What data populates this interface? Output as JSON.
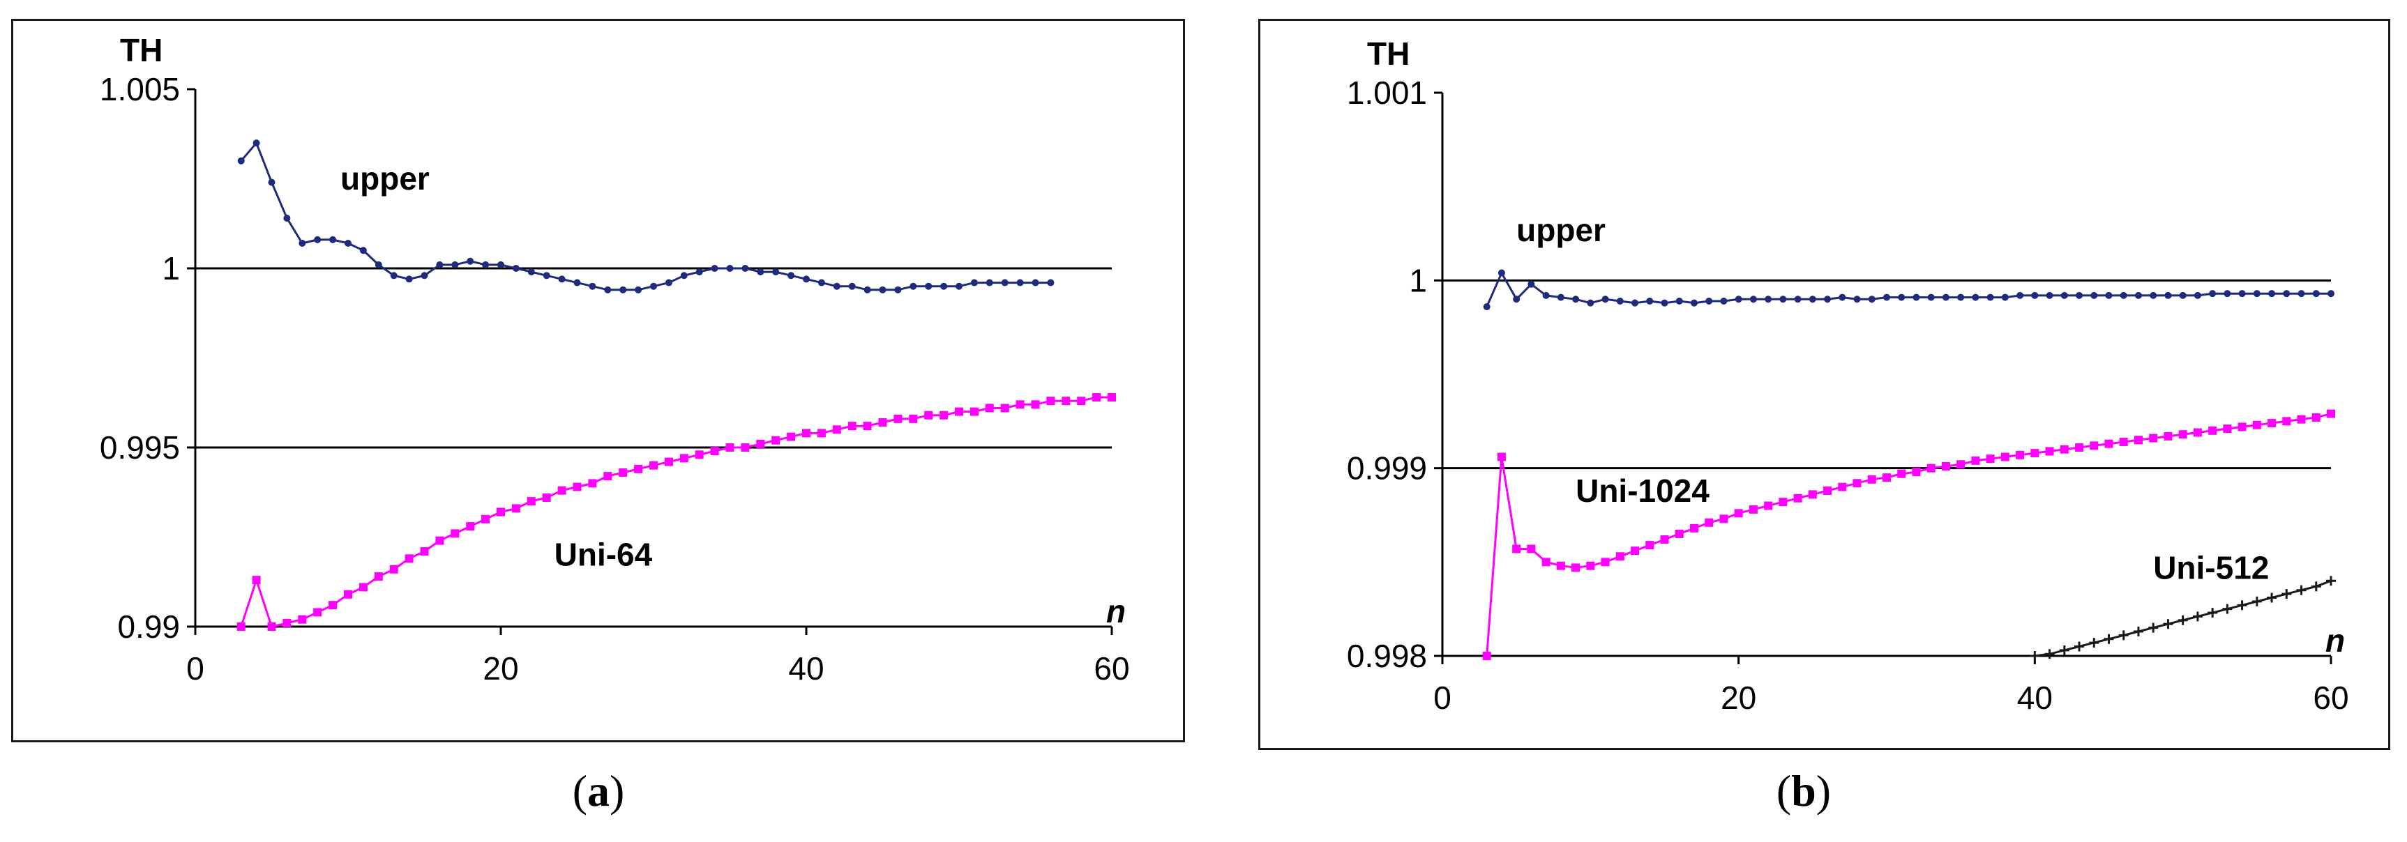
{
  "captions": {
    "a": "a",
    "b": "b"
  },
  "chart_data": [
    {
      "type": "line",
      "panel": "a",
      "ylabel": "TH",
      "xlabel": "n",
      "xlim": [
        0,
        60
      ],
      "ylim": [
        0.99,
        1.005
      ],
      "xticks": [
        "0",
        "20",
        "40",
        "60"
      ],
      "yticks": [
        "0.99",
        "0.995",
        "1",
        "1.005"
      ],
      "gridlines_y": [
        0.995,
        1.0
      ],
      "series": [
        {
          "name": "upper",
          "color": "#1f2a7a",
          "marker": "dot",
          "points": [
            [
              3,
              1.003
            ],
            [
              4,
              1.0035
            ],
            [
              5,
              1.0024
            ],
            [
              6,
              1.0014
            ],
            [
              7,
              1.0007
            ],
            [
              8,
              1.0008
            ],
            [
              9,
              1.0008
            ],
            [
              10,
              1.0007
            ],
            [
              11,
              1.0005
            ],
            [
              12,
              1.0001
            ],
            [
              13,
              0.9998
            ],
            [
              14,
              0.9997
            ],
            [
              15,
              0.9998
            ],
            [
              16,
              1.0001
            ],
            [
              17,
              1.0001
            ],
            [
              18,
              1.0002
            ],
            [
              19,
              1.0001
            ],
            [
              20,
              1.0001
            ],
            [
              21,
              1.0
            ],
            [
              22,
              0.9999
            ],
            [
              23,
              0.9998
            ],
            [
              24,
              0.9997
            ],
            [
              25,
              0.9996
            ],
            [
              26,
              0.9995
            ],
            [
              27,
              0.9994
            ],
            [
              28,
              0.9994
            ],
            [
              29,
              0.9994
            ],
            [
              30,
              0.9995
            ],
            [
              31,
              0.9996
            ],
            [
              32,
              0.9998
            ],
            [
              33,
              0.9999
            ],
            [
              34,
              1.0
            ],
            [
              35,
              1.0
            ],
            [
              36,
              1.0
            ],
            [
              37,
              0.9999
            ],
            [
              38,
              0.9999
            ],
            [
              39,
              0.9998
            ],
            [
              40,
              0.9997
            ],
            [
              41,
              0.9996
            ],
            [
              42,
              0.9995
            ],
            [
              43,
              0.9995
            ],
            [
              44,
              0.9994
            ],
            [
              45,
              0.9994
            ],
            [
              46,
              0.9994
            ],
            [
              47,
              0.9995
            ],
            [
              48,
              0.9995
            ],
            [
              49,
              0.9995
            ],
            [
              50,
              0.9995
            ],
            [
              51,
              0.9996
            ],
            [
              52,
              0.9996
            ],
            [
              53,
              0.9996
            ],
            [
              54,
              0.9996
            ],
            [
              55,
              0.9996
            ],
            [
              56,
              0.9996
            ]
          ]
        },
        {
          "name": "Uni-64",
          "color": "#ff00ff",
          "marker": "square",
          "points": [
            [
              3,
              0.99
            ],
            [
              4,
              0.9913
            ],
            [
              5,
              0.99
            ],
            [
              6,
              0.9901
            ],
            [
              7,
              0.9902
            ],
            [
              8,
              0.9904
            ],
            [
              9,
              0.9906
            ],
            [
              10,
              0.9909
            ],
            [
              11,
              0.9911
            ],
            [
              12,
              0.9914
            ],
            [
              13,
              0.9916
            ],
            [
              14,
              0.9919
            ],
            [
              15,
              0.9921
            ],
            [
              16,
              0.9924
            ],
            [
              17,
              0.9926
            ],
            [
              18,
              0.9928
            ],
            [
              19,
              0.993
            ],
            [
              20,
              0.9932
            ],
            [
              21,
              0.9933
            ],
            [
              22,
              0.9935
            ],
            [
              23,
              0.9936
            ],
            [
              24,
              0.9938
            ],
            [
              25,
              0.9939
            ],
            [
              26,
              0.994
            ],
            [
              27,
              0.9942
            ],
            [
              28,
              0.9943
            ],
            [
              29,
              0.9944
            ],
            [
              30,
              0.9945
            ],
            [
              31,
              0.9946
            ],
            [
              32,
              0.9947
            ],
            [
              33,
              0.9948
            ],
            [
              34,
              0.9949
            ],
            [
              35,
              0.995
            ],
            [
              36,
              0.995
            ],
            [
              37,
              0.9951
            ],
            [
              38,
              0.9952
            ],
            [
              39,
              0.9953
            ],
            [
              40,
              0.9954
            ],
            [
              41,
              0.9954
            ],
            [
              42,
              0.9955
            ],
            [
              43,
              0.9956
            ],
            [
              44,
              0.9956
            ],
            [
              45,
              0.9957
            ],
            [
              46,
              0.9958
            ],
            [
              47,
              0.9958
            ],
            [
              48,
              0.9959
            ],
            [
              49,
              0.9959
            ],
            [
              50,
              0.996
            ],
            [
              51,
              0.996
            ],
            [
              52,
              0.9961
            ],
            [
              53,
              0.9961
            ],
            [
              54,
              0.9962
            ],
            [
              55,
              0.9962
            ],
            [
              56,
              0.9963
            ],
            [
              57,
              0.9963
            ],
            [
              58,
              0.9963
            ],
            [
              59,
              0.9964
            ],
            [
              60,
              0.9964
            ]
          ]
        }
      ],
      "labels": [
        {
          "text": "upper",
          "x": 9.5,
          "y": 1.0022
        },
        {
          "text": "Uni-64",
          "x": 23.5,
          "y": 0.9917
        }
      ]
    },
    {
      "type": "line",
      "panel": "b",
      "ylabel": "TH",
      "xlabel": "n",
      "xlim": [
        0,
        60
      ],
      "ylim": [
        0.998,
        1.001
      ],
      "xticks": [
        "0",
        "20",
        "40",
        "60"
      ],
      "yticks": [
        "0.998",
        "0.999",
        "1",
        "1.001"
      ],
      "gridlines_y": [
        0.999,
        1.0
      ],
      "series": [
        {
          "name": "upper",
          "color": "#1f2a7a",
          "marker": "dot",
          "points": [
            [
              3,
              0.99986
            ],
            [
              4,
              1.00004
            ],
            [
              5,
              0.9999
            ],
            [
              6,
              0.99998
            ],
            [
              7,
              0.99992
            ],
            [
              8,
              0.99991
            ],
            [
              9,
              0.9999
            ],
            [
              10,
              0.99988
            ],
            [
              11,
              0.9999
            ],
            [
              12,
              0.99989
            ],
            [
              13,
              0.99988
            ],
            [
              14,
              0.99989
            ],
            [
              15,
              0.99988
            ],
            [
              16,
              0.99989
            ],
            [
              17,
              0.99988
            ],
            [
              18,
              0.99989
            ],
            [
              19,
              0.99989
            ],
            [
              20,
              0.9999
            ],
            [
              21,
              0.9999
            ],
            [
              22,
              0.9999
            ],
            [
              23,
              0.9999
            ],
            [
              24,
              0.9999
            ],
            [
              25,
              0.9999
            ],
            [
              26,
              0.9999
            ],
            [
              27,
              0.99991
            ],
            [
              28,
              0.9999
            ],
            [
              29,
              0.9999
            ],
            [
              30,
              0.99991
            ],
            [
              31,
              0.99991
            ],
            [
              32,
              0.99991
            ],
            [
              33,
              0.99991
            ],
            [
              34,
              0.99991
            ],
            [
              35,
              0.99991
            ],
            [
              36,
              0.99991
            ],
            [
              37,
              0.99991
            ],
            [
              38,
              0.99991
            ],
            [
              39,
              0.99992
            ],
            [
              40,
              0.99992
            ],
            [
              41,
              0.99992
            ],
            [
              42,
              0.99992
            ],
            [
              43,
              0.99992
            ],
            [
              44,
              0.99992
            ],
            [
              45,
              0.99992
            ],
            [
              46,
              0.99992
            ],
            [
              47,
              0.99992
            ],
            [
              48,
              0.99992
            ],
            [
              49,
              0.99992
            ],
            [
              50,
              0.99992
            ],
            [
              51,
              0.99992
            ],
            [
              52,
              0.99993
            ],
            [
              53,
              0.99993
            ],
            [
              54,
              0.99993
            ],
            [
              55,
              0.99993
            ],
            [
              56,
              0.99993
            ],
            [
              57,
              0.99993
            ],
            [
              58,
              0.99993
            ],
            [
              59,
              0.99993
            ],
            [
              60,
              0.99993
            ]
          ]
        },
        {
          "name": "Uni-1024",
          "color": "#ff00ff",
          "marker": "square",
          "points": [
            [
              3,
              0.998
            ],
            [
              4,
              0.99906
            ],
            [
              5,
              0.99857
            ],
            [
              6,
              0.99857
            ],
            [
              7,
              0.9985
            ],
            [
              8,
              0.99848
            ],
            [
              9,
              0.99847
            ],
            [
              10,
              0.99848
            ],
            [
              11,
              0.9985
            ],
            [
              12,
              0.99853
            ],
            [
              13,
              0.99856
            ],
            [
              14,
              0.99859
            ],
            [
              15,
              0.99862
            ],
            [
              16,
              0.99865
            ],
            [
              17,
              0.99868
            ],
            [
              18,
              0.99871
            ],
            [
              19,
              0.99873
            ],
            [
              20,
              0.99876
            ],
            [
              21,
              0.99878
            ],
            [
              22,
              0.9988
            ],
            [
              23,
              0.99882
            ],
            [
              24,
              0.99884
            ],
            [
              25,
              0.99886
            ],
            [
              26,
              0.99888
            ],
            [
              27,
              0.9989
            ],
            [
              28,
              0.99892
            ],
            [
              29,
              0.99894
            ],
            [
              30,
              0.99895
            ],
            [
              31,
              0.99897
            ],
            [
              32,
              0.99898
            ],
            [
              33,
              0.999
            ],
            [
              34,
              0.99901
            ],
            [
              35,
              0.99902
            ],
            [
              36,
              0.99904
            ],
            [
              37,
              0.99905
            ],
            [
              38,
              0.99906
            ],
            [
              39,
              0.99907
            ],
            [
              40,
              0.99908
            ],
            [
              41,
              0.99909
            ],
            [
              42,
              0.9991
            ],
            [
              43,
              0.99911
            ],
            [
              44,
              0.99912
            ],
            [
              45,
              0.99913
            ],
            [
              46,
              0.99914
            ],
            [
              47,
              0.99915
            ],
            [
              48,
              0.99916
            ],
            [
              49,
              0.99917
            ],
            [
              50,
              0.99918
            ],
            [
              51,
              0.99919
            ],
            [
              52,
              0.9992
            ],
            [
              53,
              0.99921
            ],
            [
              54,
              0.99922
            ],
            [
              55,
              0.99923
            ],
            [
              56,
              0.99924
            ],
            [
              57,
              0.99925
            ],
            [
              58,
              0.99926
            ],
            [
              59,
              0.99927
            ],
            [
              60,
              0.99929
            ]
          ]
        },
        {
          "name": "Uni-512",
          "color": "#1a1a1a",
          "marker": "plus",
          "points": [
            [
              40,
              0.998
            ],
            [
              41,
              0.99801
            ],
            [
              42,
              0.99803
            ],
            [
              43,
              0.99805
            ],
            [
              44,
              0.99807
            ],
            [
              45,
              0.99809
            ],
            [
              46,
              0.99811
            ],
            [
              47,
              0.99813
            ],
            [
              48,
              0.99815
            ],
            [
              49,
              0.99817
            ],
            [
              50,
              0.99819
            ],
            [
              51,
              0.99821
            ],
            [
              52,
              0.99823
            ],
            [
              53,
              0.99825
            ],
            [
              54,
              0.99827
            ],
            [
              55,
              0.99829
            ],
            [
              56,
              0.99831
            ],
            [
              57,
              0.99833
            ],
            [
              58,
              0.99835
            ],
            [
              59,
              0.99837
            ],
            [
              60,
              0.9984
            ]
          ]
        }
      ],
      "labels": [
        {
          "text": "upper",
          "x": 5,
          "y": 1.00021
        },
        {
          "text": "Uni-1024",
          "x": 9,
          "y": 0.99882
        },
        {
          "text": "Uni-512",
          "x": 48,
          "y": 0.99841
        }
      ]
    }
  ]
}
